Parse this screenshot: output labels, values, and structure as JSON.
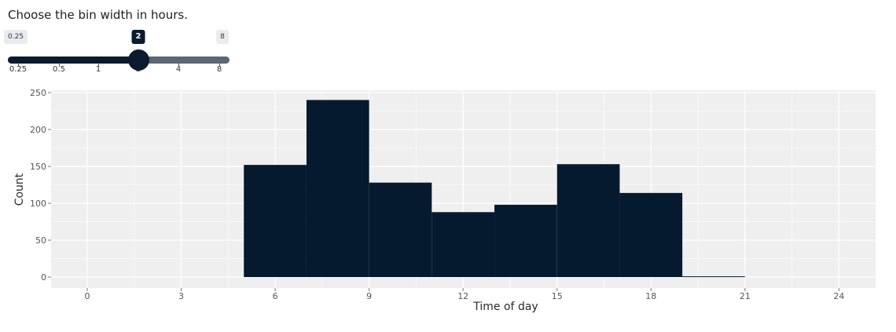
{
  "prompt": "Choose the bin width in hours.",
  "slider": {
    "min_label": "0.25",
    "max_label": "8",
    "current_label": "2",
    "current_index": 3,
    "ticks": [
      "0.25",
      "0.5",
      "1",
      "2",
      "4",
      "8"
    ]
  },
  "colors": {
    "bar": "#061a2f",
    "panel": "#efefef",
    "grid": "#ffffff",
    "slider_track": "#5d6673",
    "slider_fill": "#0b1a2e"
  },
  "chart_data": {
    "type": "bar",
    "xlabel": "Time of day",
    "ylabel": "Count",
    "xlim": [
      -4,
      25
    ],
    "ylim": [
      0,
      250
    ],
    "xticks": [
      0,
      3,
      6,
      9,
      12,
      15,
      18,
      21,
      24
    ],
    "yticks": [
      0,
      50,
      100,
      150,
      200,
      250
    ],
    "bin_width": 2,
    "bins": [
      {
        "x0": 5,
        "x1": 7,
        "count": 152
      },
      {
        "x0": 7,
        "x1": 9,
        "count": 240
      },
      {
        "x0": 9,
        "x1": 11,
        "count": 128
      },
      {
        "x0": 11,
        "x1": 13,
        "count": 88
      },
      {
        "x0": 13,
        "x1": 15,
        "count": 98
      },
      {
        "x0": 15,
        "x1": 17,
        "count": 153
      },
      {
        "x0": 17,
        "x1": 19,
        "count": 114
      },
      {
        "x0": 19,
        "x1": 21,
        "count": 1
      }
    ]
  }
}
